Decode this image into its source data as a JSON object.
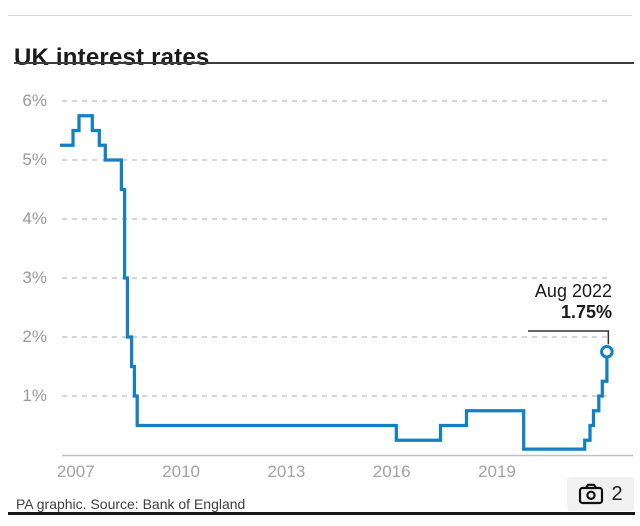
{
  "page": {
    "title": "UK interest rates",
    "source": "PA graphic. Source: Bank of England"
  },
  "annotation": {
    "label": "Aug 2022",
    "value": "1.75%"
  },
  "badge": {
    "icon": "camera-icon",
    "count": "2"
  },
  "colors": {
    "line": "#1280c2",
    "grid": "#c9c9c9",
    "axis": "#c0c0c0",
    "tick_text": "#9a9a9a",
    "title_text": "#1a1a1a",
    "leader": "#333333",
    "marker_fill": "#ffffff"
  },
  "chart_data": {
    "type": "line",
    "step": true,
    "title": "UK interest rates",
    "xlabel": "",
    "ylabel": "",
    "grid": "horizontal-dashed",
    "legend": "none",
    "xlim": [
      2006.95,
      2022.85
    ],
    "ylim": [
      0,
      6.4
    ],
    "y_ticks": [
      {
        "label": "6%",
        "value": 6
      },
      {
        "label": "5%",
        "value": 5
      },
      {
        "label": "4%",
        "value": 4
      },
      {
        "label": "3%",
        "value": 3
      },
      {
        "label": "2%",
        "value": 2
      },
      {
        "label": "1%",
        "value": 1
      }
    ],
    "x_ticks": [
      {
        "label": "2007",
        "year": 2007
      },
      {
        "label": "2010",
        "year": 2010
      },
      {
        "label": "2013",
        "year": 2013
      },
      {
        "label": "2016",
        "year": 2016
      },
      {
        "label": "2019",
        "year": 2019
      }
    ],
    "series": [
      {
        "name": "UK interest rate",
        "color": "#1280c2",
        "points": [
          {
            "date": "Jan 2007",
            "year": 2007.0,
            "rate": 5.25
          },
          {
            "date": "May 2007",
            "year": 2007.37,
            "rate": 5.5
          },
          {
            "date": "Jul 2007",
            "year": 2007.54,
            "rate": 5.75
          },
          {
            "date": "Dec 2007",
            "year": 2007.92,
            "rate": 5.5
          },
          {
            "date": "Feb 2008",
            "year": 2008.12,
            "rate": 5.25
          },
          {
            "date": "Apr 2008",
            "year": 2008.29,
            "rate": 5.0
          },
          {
            "date": "Oct 2008",
            "year": 2008.75,
            "rate": 4.5
          },
          {
            "date": "Nov 2008",
            "year": 2008.84,
            "rate": 3.0
          },
          {
            "date": "Dec 2008",
            "year": 2008.92,
            "rate": 2.0
          },
          {
            "date": "Jan 2009",
            "year": 2009.04,
            "rate": 1.5
          },
          {
            "date": "Feb 2009",
            "year": 2009.12,
            "rate": 1.0
          },
          {
            "date": "Mar 2009",
            "year": 2009.2,
            "rate": 0.5
          },
          {
            "date": "Aug 2016",
            "year": 2016.58,
            "rate": 0.25
          },
          {
            "date": "Nov 2017",
            "year": 2017.84,
            "rate": 0.5
          },
          {
            "date": "Aug 2018",
            "year": 2018.58,
            "rate": 0.75
          },
          {
            "date": "Mar 2020",
            "year": 2020.21,
            "rate": 0.1
          },
          {
            "date": "Dec 2021",
            "year": 2021.95,
            "rate": 0.25
          },
          {
            "date": "Feb 2022",
            "year": 2022.1,
            "rate": 0.5
          },
          {
            "date": "Mar 2022",
            "year": 2022.2,
            "rate": 0.75
          },
          {
            "date": "May 2022",
            "year": 2022.35,
            "rate": 1.0
          },
          {
            "date": "Jun 2022",
            "year": 2022.45,
            "rate": 1.25
          },
          {
            "date": "Aug 2022",
            "year": 2022.58,
            "rate": 1.75
          }
        ]
      }
    ],
    "endpoint_annotation": {
      "label": "Aug 2022",
      "value": "1.75%",
      "year": 2022.58,
      "rate": 1.75
    }
  }
}
